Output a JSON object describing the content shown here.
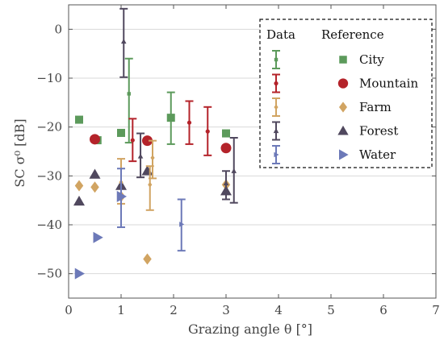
{
  "chart_data": {
    "type": "scatter",
    "xlabel": "Grazing angle θ [°]",
    "ylabel": "SC σ⁰ [dB]",
    "xlim": [
      0,
      7
    ],
    "ylim": [
      -55,
      5
    ],
    "xticks": [
      0,
      1,
      2,
      3,
      4,
      5,
      6,
      7
    ],
    "yticks": [
      0,
      -10,
      -20,
      -30,
      -40,
      -50
    ],
    "grid": "horizontal",
    "legend": {
      "placement": "top-right",
      "style": "dashed-box",
      "col_headers": [
        "Data",
        "Reference"
      ]
    },
    "series": [
      {
        "name": "City",
        "color": "#5c9a5b",
        "marker": "square",
        "reference": [
          [
            0.2,
            -18.5
          ],
          [
            1.0,
            -21.2
          ],
          [
            1.95,
            -18.1
          ],
          [
            3.0,
            -21.3
          ],
          [
            0.55,
            -22.7
          ]
        ],
        "data": [
          {
            "x": 1.15,
            "y": -13.2,
            "low": -23.2,
            "high": -6.0
          },
          {
            "x": 1.95,
            "y": -18.1,
            "low": -23.5,
            "high": -12.9
          }
        ]
      },
      {
        "name": "Mountain",
        "color": "#b4232a",
        "marker": "circle",
        "reference": [
          [
            0.5,
            -22.5
          ],
          [
            1.5,
            -22.8
          ],
          [
            3.0,
            -24.3
          ]
        ],
        "data": [
          {
            "x": 1.22,
            "y": -22.7,
            "low": -27.0,
            "high": -18.3
          },
          {
            "x": 2.3,
            "y": -19.1,
            "low": -23.5,
            "high": -14.7
          },
          {
            "x": 2.65,
            "y": -20.9,
            "low": -25.8,
            "high": -15.9
          }
        ]
      },
      {
        "name": "Farm",
        "color": "#d1a462",
        "marker": "diamond",
        "reference": [
          [
            0.2,
            -32.0
          ],
          [
            0.5,
            -32.3
          ],
          [
            1.0,
            -34.2
          ],
          [
            1.5,
            -47.0
          ],
          [
            3.0,
            -31.8
          ]
        ],
        "data": [
          {
            "x": 1.0,
            "y": -31.3,
            "low": -35.7,
            "high": -26.5
          },
          {
            "x": 1.6,
            "y": -26.3,
            "low": -30.5,
            "high": -22.8
          },
          {
            "x": 1.55,
            "y": -31.8,
            "low": -37.0,
            "high": -28.0
          }
        ]
      },
      {
        "name": "Forest",
        "color": "#50485e",
        "marker": "triangle-up",
        "reference": [
          [
            0.2,
            -35.2
          ],
          [
            0.5,
            -29.7
          ],
          [
            1.0,
            -32.0
          ],
          [
            1.5,
            -29.0
          ],
          [
            3.0,
            -33.1
          ]
        ],
        "data": [
          {
            "x": 1.05,
            "y": -2.5,
            "low": -9.8,
            "high": 4.2
          },
          {
            "x": 1.37,
            "y": -26.0,
            "low": -30.3,
            "high": -21.3
          },
          {
            "x": 3.0,
            "y": -31.5,
            "low": -34.8,
            "high": -29.0
          },
          {
            "x": 3.15,
            "y": -29.0,
            "low": -35.5,
            "high": -22.2
          }
        ]
      },
      {
        "name": "Water",
        "color": "#6c79b8",
        "marker": "triangle-right",
        "reference": [
          [
            0.2,
            -50.0
          ],
          [
            0.55,
            -42.6
          ],
          [
            1.0,
            -34.2
          ]
        ],
        "data": [
          {
            "x": 1.0,
            "y": -34.5,
            "low": -40.5,
            "high": -28.5
          },
          {
            "x": 2.15,
            "y": -39.9,
            "low": -45.3,
            "high": -34.8
          }
        ]
      }
    ]
  }
}
